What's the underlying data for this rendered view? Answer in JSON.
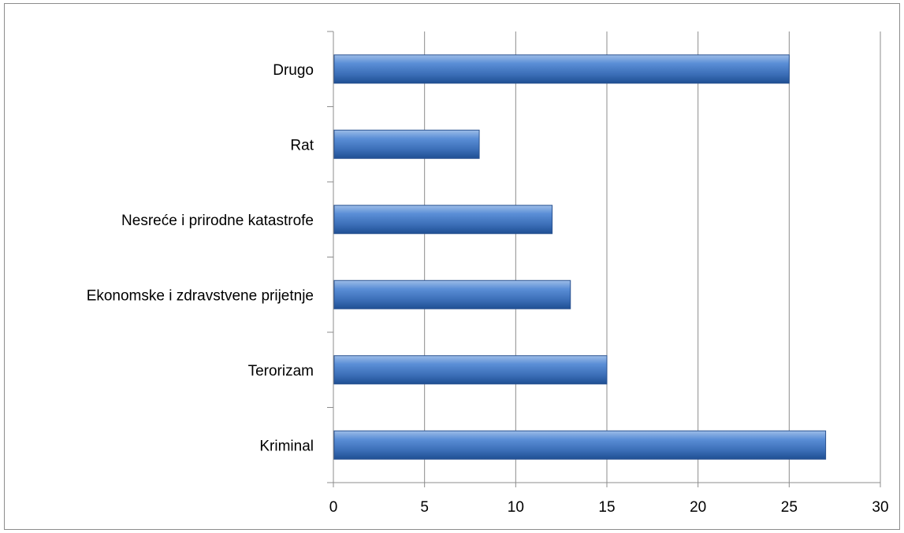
{
  "chart_data": {
    "type": "bar",
    "orientation": "horizontal",
    "categories": [
      "Kriminal",
      "Terorizam",
      "Ekonomske i zdravstvene prijetnje",
      "Nesreće i prirodne katastrofe",
      "Rat",
      "Drugo"
    ],
    "values": [
      27,
      15,
      13,
      12,
      8,
      25
    ],
    "xlim": [
      0,
      30
    ],
    "xticks": [
      "0",
      "5",
      "10",
      "15",
      "20",
      "25",
      "30"
    ],
    "grid": "vertical",
    "legend": "none",
    "bar_color": "#4f81bd"
  }
}
